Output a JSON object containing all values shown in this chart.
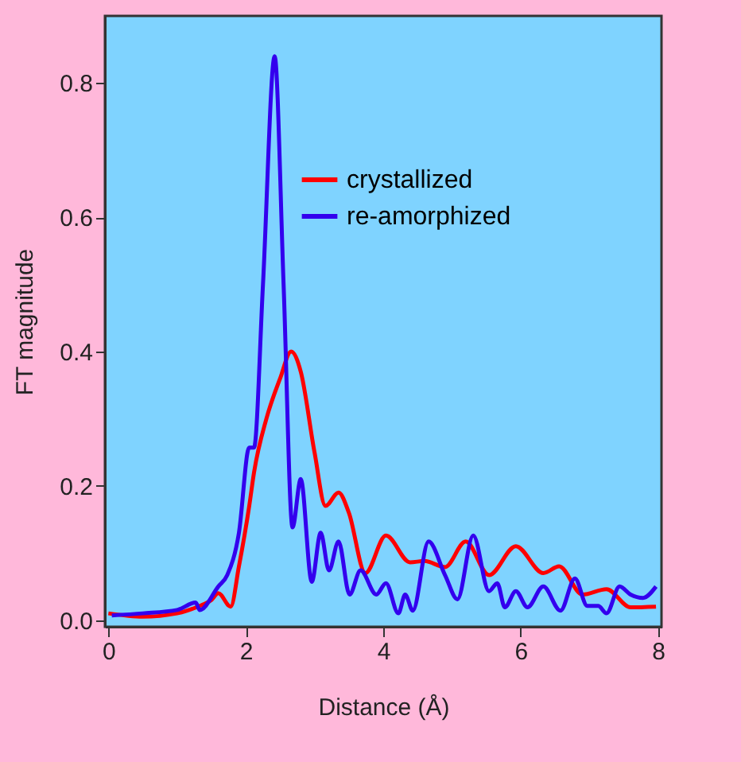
{
  "chart_data": {
    "type": "line",
    "xlabel": "Distance (Å)",
    "ylabel": "FT magnitude",
    "xlim": [
      -0.05,
      8.05
    ],
    "ylim": [
      -0.01,
      0.9
    ],
    "xticks": [
      0,
      2,
      4,
      6,
      8
    ],
    "yticks": [
      {
        "value": 0,
        "label": "0.0"
      },
      0.2,
      0.4,
      0.6,
      0.8
    ],
    "grid": false,
    "legend": "top right",
    "series": [
      {
        "name": "crystallized",
        "color": "#ff0000",
        "x": [
          0.0,
          0.5,
          1.0,
          1.3,
          1.5,
          1.6,
          1.78,
          1.9,
          2.05,
          2.12,
          2.3,
          2.5,
          2.66,
          2.8,
          3.0,
          3.16,
          3.35,
          3.5,
          3.74,
          4.04,
          4.39,
          4.6,
          4.9,
          5.2,
          5.54,
          5.93,
          6.33,
          6.56,
          6.9,
          7.25,
          7.6,
          7.97
        ],
        "values": [
          0.01,
          0.005,
          0.01,
          0.02,
          0.03,
          0.04,
          0.02,
          0.08,
          0.17,
          0.22,
          0.3,
          0.36,
          0.4,
          0.37,
          0.25,
          0.17,
          0.19,
          0.16,
          0.07,
          0.126,
          0.086,
          0.088,
          0.079,
          0.117,
          0.067,
          0.11,
          0.07,
          0.08,
          0.038,
          0.046,
          0.019,
          0.02
        ]
      },
      {
        "name": "re-amorphized",
        "color": "#3300ee",
        "x": [
          0.05,
          0.5,
          1.0,
          1.27,
          1.33,
          1.6,
          1.73,
          1.9,
          2.05,
          2.12,
          2.25,
          2.42,
          2.55,
          2.68,
          2.8,
          2.96,
          3.09,
          3.21,
          3.35,
          3.51,
          3.67,
          3.9,
          4.04,
          4.22,
          4.32,
          4.43,
          4.66,
          4.9,
          5.08,
          5.31,
          5.54,
          5.66,
          5.77,
          5.93,
          6.1,
          6.33,
          6.58,
          6.79,
          6.97,
          7.13,
          7.25,
          7.44,
          7.6,
          7.78,
          7.97
        ],
        "values": [
          0.007,
          0.01,
          0.015,
          0.026,
          0.015,
          0.05,
          0.067,
          0.13,
          0.257,
          0.257,
          0.5,
          0.84,
          0.5,
          0.138,
          0.21,
          0.057,
          0.13,
          0.074,
          0.117,
          0.038,
          0.074,
          0.038,
          0.055,
          0.01,
          0.038,
          0.014,
          0.117,
          0.067,
          0.031,
          0.126,
          0.043,
          0.055,
          0.019,
          0.043,
          0.019,
          0.05,
          0.014,
          0.062,
          0.021,
          0.021,
          0.01,
          0.05,
          0.038,
          0.033,
          0.05
        ]
      }
    ]
  }
}
